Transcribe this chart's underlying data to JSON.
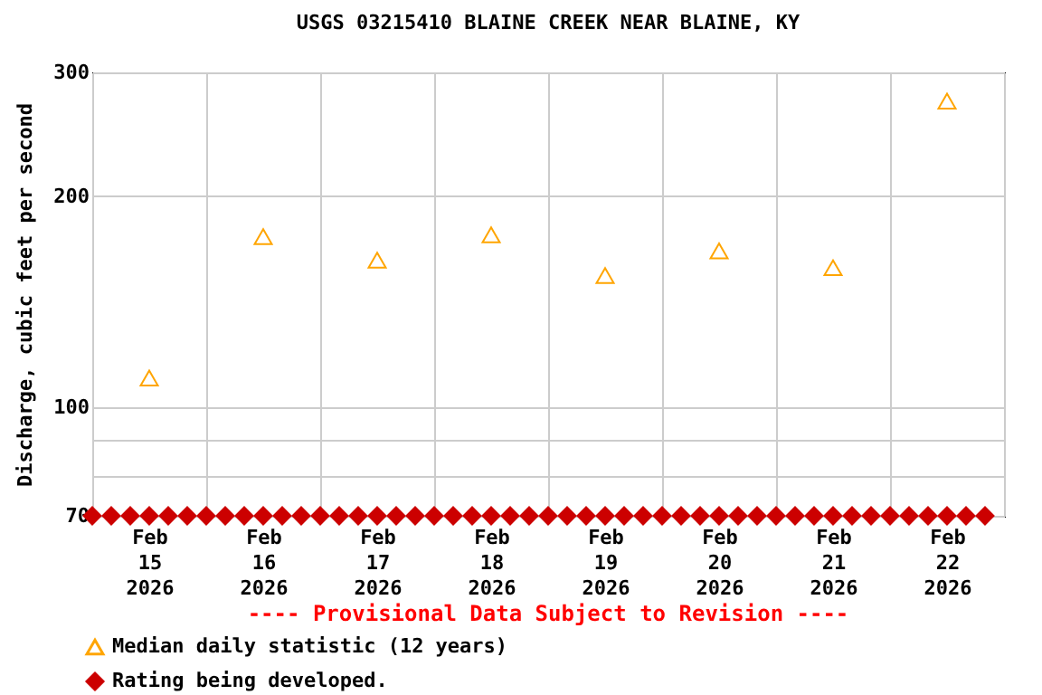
{
  "chart_data": {
    "type": "scatter",
    "title": "USGS 03215410 BLAINE CREEK NEAR BLAINE, KY",
    "ylabel": "Discharge, cubic feet per second",
    "annotations": [
      "---- Provisional Data Subject to Revision ----"
    ],
    "log": "y",
    "grid": true,
    "legend": "bottom left",
    "xlim": [
      "2026-02-15T00:00",
      "2026-02-23T00:00"
    ],
    "xticks": [
      {
        "value": "2026-02-15T00:00",
        "label": null
      },
      {
        "value": "2026-02-15T12:00",
        "label": "Feb 15 2026"
      },
      {
        "value": "2026-02-16T00:00",
        "label": null
      },
      {
        "value": "2026-02-16T12:00",
        "label": "Feb 16 2026"
      },
      {
        "value": "2026-02-17T00:00",
        "label": null
      },
      {
        "value": "2026-02-17T12:00",
        "label": "Feb 17 2026"
      },
      {
        "value": "2026-02-18T00:00",
        "label": null
      },
      {
        "value": "2026-02-18T12:00",
        "label": "Feb 18 2026"
      },
      {
        "value": "2026-02-19T00:00",
        "label": null
      },
      {
        "value": "2026-02-19T12:00",
        "label": "Feb 19 2026"
      },
      {
        "value": "2026-02-20T00:00",
        "label": null
      },
      {
        "value": "2026-02-20T12:00",
        "label": "Feb 20 2026"
      },
      {
        "value": "2026-02-21T00:00",
        "label": null
      },
      {
        "value": "2026-02-21T12:00",
        "label": "Feb 21 2026"
      },
      {
        "value": "2026-02-22T00:00",
        "label": null
      },
      {
        "value": "2026-02-22T12:00",
        "label": "Feb 22 2026"
      },
      {
        "value": "2026-02-23T00:00",
        "label": null
      }
    ],
    "ylim": [
      70,
      300
    ],
    "yticks": [
      70,
      {
        "value": 80,
        "label": null
      },
      {
        "value": 90,
        "label": null
      },
      100,
      200,
      300
    ],
    "series": [
      {
        "name": "Median daily statistic (12 years)",
        "color": "#ffa500",
        "marker": "triangle",
        "x": [
          "2026-02-15T12:00",
          "2026-02-16T12:00",
          "2026-02-17T12:00",
          "2026-02-18T12:00",
          "2026-02-19T12:00",
          "2026-02-20T12:00",
          "2026-02-21T12:00",
          "2026-02-22T12:00"
        ],
        "values": [
          110,
          175,
          162,
          176,
          154,
          167,
          158,
          273
        ]
      },
      {
        "name": "Rating being developed.",
        "color": "#cc0000",
        "marker": "diamond",
        "x": [
          "2026-02-15T00:00",
          "2026-02-15T04:00",
          "2026-02-15T08:00",
          "2026-02-15T12:00",
          "2026-02-15T16:00",
          "2026-02-15T20:00",
          "2026-02-16T00:00",
          "2026-02-16T04:00",
          "2026-02-16T08:00",
          "2026-02-16T12:00",
          "2026-02-16T16:00",
          "2026-02-16T20:00",
          "2026-02-17T00:00",
          "2026-02-17T04:00",
          "2026-02-17T08:00",
          "2026-02-17T12:00",
          "2026-02-17T16:00",
          "2026-02-17T20:00",
          "2026-02-18T00:00",
          "2026-02-18T04:00",
          "2026-02-18T08:00",
          "2026-02-18T12:00",
          "2026-02-18T16:00",
          "2026-02-18T20:00",
          "2026-02-19T00:00",
          "2026-02-19T04:00",
          "2026-02-19T08:00",
          "2026-02-19T12:00",
          "2026-02-19T16:00",
          "2026-02-19T20:00",
          "2026-02-20T00:00",
          "2026-02-20T04:00",
          "2026-02-20T08:00",
          "2026-02-20T12:00",
          "2026-02-20T16:00",
          "2026-02-20T20:00",
          "2026-02-21T00:00",
          "2026-02-21T04:00",
          "2026-02-21T08:00",
          "2026-02-21T12:00",
          "2026-02-21T16:00",
          "2026-02-21T20:00",
          "2026-02-22T00:00",
          "2026-02-22T04:00",
          "2026-02-22T08:00",
          "2026-02-22T12:00",
          "2026-02-22T16:00",
          "2026-02-22T20:00"
        ],
        "values": [
          70,
          70,
          70,
          70,
          70,
          70,
          70,
          70,
          70,
          70,
          70,
          70,
          70,
          70,
          70,
          70,
          70,
          70,
          70,
          70,
          70,
          70,
          70,
          70,
          70,
          70,
          70,
          70,
          70,
          70,
          70,
          70,
          70,
          70,
          70,
          70,
          70,
          70,
          70,
          70,
          70,
          70,
          70,
          70,
          70,
          70,
          70,
          70
        ]
      }
    ]
  }
}
